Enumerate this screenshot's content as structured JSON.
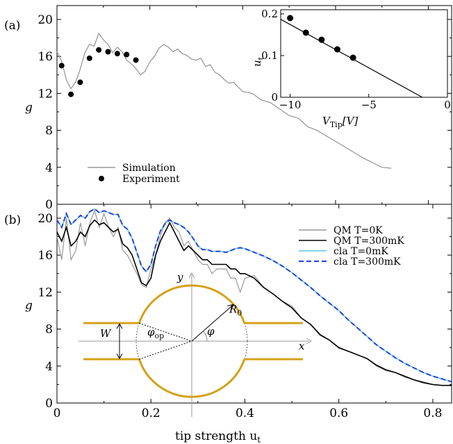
{
  "chart_data": [
    {
      "panel": "(a)",
      "type": "line",
      "ylabel": "g",
      "xlim": [
        0,
        0.85
      ],
      "ylim": [
        0,
        21.5
      ],
      "yticks": [
        0,
        4,
        8,
        12,
        16,
        20
      ],
      "legend": {
        "placement": "bottom-left",
        "entries": [
          "Simulation",
          "Experiment"
        ]
      },
      "series": [
        {
          "name": "Simulation",
          "color": "#999999",
          "x": [
            0,
            0.01,
            0.02,
            0.03,
            0.04,
            0.05,
            0.06,
            0.07,
            0.08,
            0.09,
            0.1,
            0.11,
            0.12,
            0.13,
            0.14,
            0.15,
            0.16,
            0.17,
            0.18,
            0.19,
            0.2,
            0.21,
            0.22,
            0.23,
            0.24,
            0.25,
            0.26,
            0.27,
            0.28,
            0.29,
            0.3,
            0.31,
            0.32,
            0.33,
            0.34,
            0.35,
            0.36,
            0.37,
            0.38,
            0.39,
            0.4,
            0.42,
            0.44,
            0.46,
            0.48,
            0.5,
            0.52,
            0.54,
            0.56,
            0.58,
            0.6,
            0.62,
            0.64,
            0.66,
            0.68,
            0.7,
            0.72
          ],
          "y": [
            16.5,
            15.5,
            13.5,
            12.5,
            13.2,
            14.6,
            16.4,
            17.3,
            17.1,
            18.5,
            17.8,
            17.3,
            16.4,
            17.0,
            16.5,
            15.6,
            15.2,
            14.7,
            14.0,
            14.4,
            15.4,
            16.0,
            16.9,
            17.3,
            17.0,
            16.5,
            16.8,
            16.3,
            16.1,
            15.7,
            15.6,
            15.8,
            14.9,
            15.1,
            14.3,
            14.0,
            13.5,
            13.1,
            13.2,
            12.7,
            12.2,
            12.0,
            11.3,
            11.0,
            10.3,
            9.6,
            9.3,
            8.4,
            8.0,
            7.4,
            6.8,
            6.2,
            5.6,
            5.0,
            4.5,
            4.0,
            3.9
          ]
        },
        {
          "name": "Experiment",
          "color": "#000000",
          "x": [
            0.01,
            0.03,
            0.05,
            0.07,
            0.09,
            0.11,
            0.13,
            0.15,
            0.17
          ],
          "y": [
            15.0,
            11.9,
            13.2,
            15.8,
            16.7,
            16.5,
            16.3,
            16.2,
            15.6
          ]
        }
      ]
    },
    {
      "panel": "inset",
      "type": "scatter",
      "xlabel": "V_Tip[V]",
      "ylabel": "u_t",
      "xlim": [
        -10.6,
        0
      ],
      "ylim": [
        0,
        0.21
      ],
      "xticks": [
        -10,
        -5,
        0
      ],
      "yticks": [
        0,
        0.1,
        0.2
      ],
      "series": [
        {
          "name": "data",
          "x": [
            -10,
            -9,
            -8,
            -7,
            -6
          ],
          "y": [
            0.19,
            0.155,
            0.138,
            0.115,
            0.095
          ]
        },
        {
          "name": "fit",
          "x": [
            -10.6,
            -1.6
          ],
          "y": [
            0.187,
            0
          ]
        }
      ]
    },
    {
      "panel": "(b)",
      "type": "line",
      "xlabel": "tip strength u_t",
      "ylabel": "g",
      "xlim": [
        0,
        0.84
      ],
      "ylim": [
        0,
        21.5
      ],
      "xticks": [
        0,
        0.2,
        0.4,
        0.6,
        0.8
      ],
      "yticks": [
        0,
        4,
        8,
        12,
        16,
        20
      ],
      "legend": {
        "placement": "top-right",
        "entries": [
          "QM T=0K",
          "QM T=300mK",
          "cla T=0mK",
          "cla T=300mK"
        ]
      },
      "series": [
        {
          "name": "QM T=0K",
          "color": "#999999",
          "x": [
            0,
            0.01,
            0.02,
            0.03,
            0.04,
            0.05,
            0.06,
            0.07,
            0.08,
            0.09,
            0.1,
            0.11,
            0.12,
            0.13,
            0.14,
            0.15,
            0.16,
            0.17,
            0.18,
            0.19,
            0.2,
            0.21,
            0.22,
            0.23,
            0.24,
            0.25,
            0.26,
            0.27,
            0.28,
            0.29,
            0.3,
            0.31,
            0.32,
            0.33,
            0.34,
            0.35,
            0.36,
            0.37,
            0.38,
            0.39,
            0.4,
            0.42,
            0.44,
            0.46,
            0.48,
            0.5,
            0.52,
            0.54,
            0.56,
            0.58,
            0.6,
            0.62,
            0.64,
            0.66,
            0.68,
            0.7,
            0.72,
            0.74,
            0.76,
            0.78,
            0.8,
            0.82,
            0.84
          ],
          "y": [
            18.0,
            15.5,
            20.0,
            15.5,
            16.5,
            19.5,
            17.0,
            19.5,
            20.8,
            19.0,
            20.5,
            19.0,
            18.0,
            19.0,
            16.5,
            16.0,
            15.0,
            14.0,
            12.8,
            12.5,
            14.5,
            16.0,
            18.0,
            19.5,
            20.0,
            19.0,
            18.5,
            17.0,
            17.5,
            16.5,
            15.5,
            15.0,
            15.0,
            14.0,
            14.5,
            14.5,
            14.5,
            13.5,
            13.5,
            12.0,
            13.5,
            13.8,
            12.5,
            11.8,
            11.0,
            10.5,
            9.2,
            8.5,
            7.3,
            6.8,
            5.9,
            5.6,
            5.2,
            4.8,
            4.0,
            3.5,
            3.3,
            2.8,
            2.5,
            2.3,
            2.0,
            1.9,
            1.9
          ]
        },
        {
          "name": "QM T=300mK",
          "color": "#000000",
          "x": [
            0,
            0.01,
            0.02,
            0.03,
            0.04,
            0.05,
            0.06,
            0.07,
            0.08,
            0.09,
            0.1,
            0.11,
            0.12,
            0.13,
            0.14,
            0.15,
            0.16,
            0.17,
            0.18,
            0.19,
            0.2,
            0.21,
            0.22,
            0.23,
            0.24,
            0.25,
            0.26,
            0.27,
            0.28,
            0.29,
            0.3,
            0.31,
            0.32,
            0.33,
            0.34,
            0.35,
            0.36,
            0.37,
            0.38,
            0.39,
            0.4,
            0.42,
            0.44,
            0.46,
            0.48,
            0.5,
            0.52,
            0.54,
            0.56,
            0.58,
            0.6,
            0.62,
            0.64,
            0.66,
            0.68,
            0.7,
            0.72,
            0.74,
            0.76,
            0.78,
            0.8,
            0.82,
            0.84
          ],
          "y": [
            18.5,
            17.5,
            19.0,
            17.0,
            17.5,
            18.5,
            18.0,
            19.2,
            19.8,
            19.3,
            19.5,
            19.0,
            18.5,
            18.8,
            17.2,
            16.8,
            16.0,
            14.5,
            13.0,
            12.7,
            13.5,
            16.0,
            17.5,
            18.5,
            19.5,
            18.5,
            17.5,
            16.5,
            17.0,
            16.5,
            16.0,
            15.5,
            15.5,
            15.0,
            15.0,
            15.0,
            15.0,
            14.5,
            14.5,
            14.0,
            14.0,
            13.5,
            12.5,
            11.8,
            11.0,
            10.3,
            9.2,
            8.5,
            7.4,
            6.8,
            6.0,
            5.6,
            5.2,
            4.8,
            4.1,
            3.6,
            3.3,
            2.9,
            2.5,
            2.2,
            2.0,
            1.9,
            1.9
          ]
        },
        {
          "name": "cla T=0mK",
          "color": "#5ac8d8",
          "x": [
            0,
            0.01,
            0.02,
            0.03,
            0.04,
            0.05,
            0.06,
            0.07,
            0.08,
            0.09,
            0.1,
            0.11,
            0.12,
            0.13,
            0.14,
            0.15,
            0.16,
            0.17,
            0.18,
            0.19,
            0.2,
            0.21,
            0.22,
            0.23,
            0.24,
            0.25,
            0.26,
            0.27,
            0.28,
            0.29,
            0.3,
            0.31,
            0.32,
            0.33,
            0.34,
            0.35,
            0.36,
            0.37,
            0.38,
            0.39,
            0.4,
            0.42,
            0.44,
            0.46,
            0.48,
            0.5,
            0.52,
            0.54,
            0.56,
            0.58,
            0.6,
            0.62,
            0.64,
            0.66,
            0.68,
            0.7,
            0.72,
            0.74,
            0.76,
            0.78,
            0.8,
            0.82,
            0.84
          ],
          "y": [
            19.8,
            19.0,
            20.5,
            19.3,
            19.8,
            20.3,
            20.0,
            20.7,
            21.0,
            20.6,
            20.8,
            20.6,
            20.4,
            20.4,
            19.2,
            18.8,
            17.8,
            16.3,
            14.8,
            14.2,
            15.0,
            17.0,
            18.6,
            19.4,
            19.8,
            19.5,
            19.3,
            19.0,
            18.5,
            17.8,
            17.0,
            16.6,
            16.6,
            16.4,
            16.4,
            16.4,
            16.3,
            16.5,
            16.7,
            16.8,
            16.7,
            16.3,
            15.9,
            15.4,
            14.8,
            14.1,
            13.3,
            12.5,
            11.6,
            10.8,
            10.0,
            9.0,
            8.1,
            7.2,
            6.3,
            5.6,
            4.9,
            4.3,
            3.8,
            3.3,
            2.9,
            2.6,
            2.3
          ]
        },
        {
          "name": "cla T=300mK",
          "color": "#2040e0",
          "x": [
            0,
            0.01,
            0.02,
            0.03,
            0.04,
            0.05,
            0.06,
            0.07,
            0.08,
            0.09,
            0.1,
            0.11,
            0.12,
            0.13,
            0.14,
            0.15,
            0.16,
            0.17,
            0.18,
            0.19,
            0.2,
            0.21,
            0.22,
            0.23,
            0.24,
            0.25,
            0.26,
            0.27,
            0.28,
            0.29,
            0.3,
            0.31,
            0.32,
            0.33,
            0.34,
            0.35,
            0.36,
            0.37,
            0.38,
            0.39,
            0.4,
            0.42,
            0.44,
            0.46,
            0.48,
            0.5,
            0.52,
            0.54,
            0.56,
            0.58,
            0.6,
            0.62,
            0.64,
            0.66,
            0.68,
            0.7,
            0.72,
            0.74,
            0.76,
            0.78,
            0.8,
            0.82,
            0.84
          ],
          "y": [
            19.8,
            19.0,
            20.5,
            19.3,
            19.8,
            20.3,
            20.0,
            20.7,
            21.0,
            20.6,
            20.8,
            20.6,
            20.4,
            20.4,
            19.2,
            18.8,
            17.8,
            16.3,
            14.8,
            14.2,
            15.0,
            17.0,
            18.6,
            19.4,
            19.8,
            19.5,
            19.3,
            19.0,
            18.5,
            17.8,
            17.0,
            16.6,
            16.6,
            16.4,
            16.4,
            16.4,
            16.3,
            16.5,
            16.7,
            16.8,
            16.7,
            16.3,
            15.9,
            15.4,
            14.8,
            14.1,
            13.3,
            12.5,
            11.6,
            10.8,
            10.0,
            9.0,
            8.1,
            7.2,
            6.3,
            5.6,
            4.9,
            4.3,
            3.8,
            3.3,
            2.9,
            2.6,
            2.3
          ]
        }
      ]
    }
  ],
  "labels": {
    "panel_a": "(a)",
    "panel_b": "(b)",
    "g": "g",
    "legend_a": [
      "Simulation",
      "Experiment"
    ],
    "legend_b": [
      "QM T=0K",
      "QM T=300mK",
      "cla T=0mK",
      "cla T=300mK"
    ],
    "inset_ylabel": "u",
    "inset_ylabel_sub": "t",
    "inset_xlabel": "V",
    "inset_xlabel_sub": "Tip",
    "inset_xlabel_unit": "[V]",
    "xlabel_main": "tip strength u",
    "xlabel_main_sub": "t",
    "geometry": {
      "W": "W",
      "phi_op": "φ",
      "phi_op_sub": "op",
      "phi": "φ",
      "R0": "R",
      "R0_sub": "0",
      "x": "x",
      "y": "y"
    },
    "colors": {
      "geometry": "#d4a017"
    }
  }
}
